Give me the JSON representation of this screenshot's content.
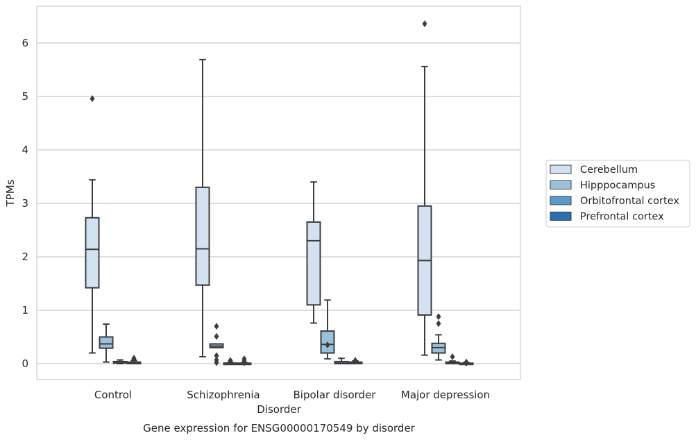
{
  "chart_data": {
    "type": "box",
    "title": "Gene expression for ENSG00000170549 by disorder",
    "xlabel": "Disorder",
    "ylabel": "TPMs",
    "ylim": [
      -0.3,
      6.7
    ],
    "yticks": [
      "0",
      "1",
      "2",
      "3",
      "4",
      "5",
      "6"
    ],
    "grid": "horizontal",
    "legend_position": "right",
    "categories": [
      "Control",
      "Schizophrenia",
      "Bipolar disorder",
      "Major depression"
    ],
    "series": [
      {
        "name": "Cerebellum",
        "color": "#d3e2f1",
        "boxes": [
          {
            "whislo": 0.2,
            "q1": 1.42,
            "med": 2.14,
            "q3": 2.73,
            "whishi": 3.44,
            "fliers": [
              4.96
            ]
          },
          {
            "whislo": 0.13,
            "q1": 1.47,
            "med": 2.15,
            "q3": 3.3,
            "whishi": 5.69,
            "fliers": []
          },
          {
            "whislo": 0.76,
            "q1": 1.1,
            "med": 2.3,
            "q3": 2.65,
            "whishi": 3.4,
            "fliers": []
          },
          {
            "whislo": 0.16,
            "q1": 0.91,
            "med": 1.93,
            "q3": 2.95,
            "whishi": 5.56,
            "fliers": [
              6.36
            ]
          }
        ]
      },
      {
        "name": "Hipppocampus",
        "color": "#9ac1dc",
        "boxes": [
          {
            "whislo": 0.03,
            "q1": 0.29,
            "med": 0.37,
            "q3": 0.5,
            "whishi": 0.74,
            "fliers": []
          },
          {
            "whislo": 0.3,
            "q1": 0.3,
            "med": 0.33,
            "q3": 0.37,
            "whishi": 0.37,
            "fliers": [
              0.7,
              0.51,
              0.15,
              0.07,
              0.02
            ]
          },
          {
            "whislo": 0.09,
            "q1": 0.2,
            "med": 0.36,
            "q3": 0.61,
            "whishi": 1.19,
            "fliers": [
              0.35
            ]
          },
          {
            "whislo": 0.07,
            "q1": 0.2,
            "med": 0.3,
            "q3": 0.38,
            "whishi": 0.54,
            "fliers": [
              0.88,
              0.75
            ]
          }
        ]
      },
      {
        "name": "Orbitofrontal cortex",
        "color": "#5a9bc9",
        "boxes": [
          {
            "whislo": 0.0,
            "q1": 0.01,
            "med": 0.02,
            "q3": 0.04,
            "whishi": 0.07,
            "fliers": []
          },
          {
            "whislo": 0.0,
            "q1": 0.0,
            "med": 0.01,
            "q3": 0.01,
            "whishi": 0.02,
            "fliers": [
              0.06,
              0.04
            ]
          },
          {
            "whislo": 0.0,
            "q1": 0.0,
            "med": 0.01,
            "q3": 0.04,
            "whishi": 0.1,
            "fliers": []
          },
          {
            "whislo": 0.0,
            "q1": 0.0,
            "med": 0.01,
            "q3": 0.03,
            "whishi": 0.05,
            "fliers": [
              0.13
            ]
          }
        ]
      },
      {
        "name": "Prefrontal cortex",
        "color": "#2a6fb0",
        "boxes": [
          {
            "whislo": 0.0,
            "q1": 0.0,
            "med": 0.01,
            "q3": 0.03,
            "whishi": 0.06,
            "fliers": [
              0.1,
              0.08
            ]
          },
          {
            "whislo": 0.0,
            "q1": 0.0,
            "med": 0.0,
            "q3": 0.01,
            "whishi": 0.02,
            "fliers": [
              0.09,
              0.05,
              0.02
            ]
          },
          {
            "whislo": 0.0,
            "q1": 0.0,
            "med": 0.01,
            "q3": 0.03,
            "whishi": 0.05,
            "fliers": [
              0.06
            ]
          },
          {
            "whislo": 0.0,
            "q1": 0.0,
            "med": 0.0,
            "q3": 0.01,
            "whishi": 0.02,
            "fliers": [
              0.03,
              0.01
            ]
          }
        ]
      }
    ]
  }
}
